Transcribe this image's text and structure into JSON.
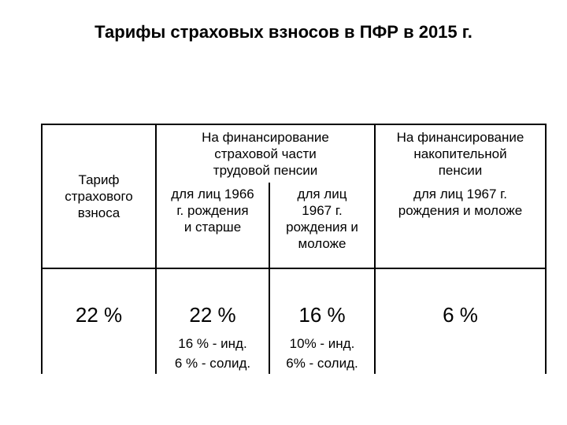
{
  "title": "Тарифы страховых взносов в ПФР в 2015 г.",
  "table": {
    "header": {
      "tariff_label": [
        "Тариф",
        "страхового",
        "взноса"
      ],
      "insurance_part": [
        "На финансирование",
        "страховой части",
        "трудовой пенсии"
      ],
      "funded_part": [
        "На финансирование",
        "накопительной",
        "пенсии"
      ],
      "born_1966_older": [
        "для лиц 1966",
        "г. рождения",
        "и старше"
      ],
      "born_1967_younger": [
        "для лиц",
        "1967 г.",
        "рождения и",
        "моложе"
      ],
      "funded_born_1967": [
        "для лиц 1967 г.",
        "рождения и моложе"
      ]
    },
    "row": {
      "tariff_value": "22 %",
      "insurance_1966_value": "22 %",
      "insurance_1967_value": "16 %",
      "funded_value": "6 %",
      "insurance_1966_breakdown": [
        "16 % - инд.",
        "6 % - солид."
      ],
      "insurance_1967_breakdown": [
        "10% - инд.",
        "6% - солид."
      ]
    }
  }
}
